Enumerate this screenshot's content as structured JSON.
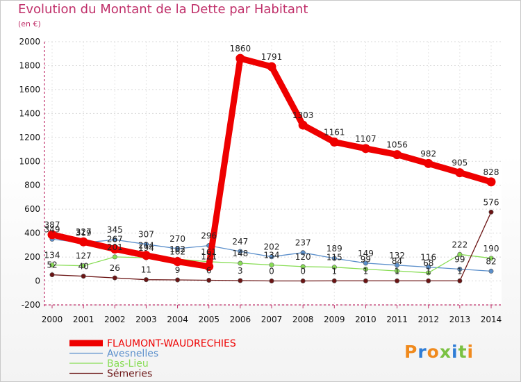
{
  "title": "Evolution du Montant de la Dette par Habitant",
  "unit": "(en €)",
  "logo": "Proxiti",
  "chart_data": {
    "type": "line",
    "title": "Evolution du Montant de la Dette par Habitant",
    "ylabel": "(en €)",
    "x": [
      "2000",
      "2001",
      "2002",
      "2003",
      "2004",
      "2005",
      "2006",
      "2007",
      "2008",
      "2009",
      "2010",
      "2011",
      "2012",
      "2013",
      "2014"
    ],
    "ylim": [
      -200,
      2000
    ],
    "yticks": [
      -200,
      0,
      200,
      400,
      600,
      800,
      1000,
      1200,
      1400,
      1600,
      1800,
      2000
    ],
    "legend_position": "bottom-left",
    "series": [
      {
        "name": "FLAUMONT-WAUDRECHIES",
        "color": "#ee0000",
        "values": [
          387,
          327,
          267,
          214,
          162,
          121,
          1860,
          1791,
          1303,
          1161,
          1107,
          1056,
          982,
          905,
          828
        ],
        "labels": [
          "387",
          "327",
          "267",
          "214",
          "162",
          "121",
          "1860",
          "1791",
          "1303",
          "1161",
          "1107",
          "1056",
          "982",
          "905",
          "828"
        ]
      },
      {
        "name": "Avesnelles",
        "color": "#5b8fcb",
        "values": [
          349,
          319,
          345,
          307,
          270,
          296,
          247,
          202,
          237,
          189,
          149,
          132,
          116,
          99,
          82
        ],
        "labels": [
          "349",
          "319",
          "345",
          "307",
          "270",
          "296",
          "247",
          "202",
          "237",
          "189",
          "149",
          "132",
          "116",
          "99",
          "82"
        ]
      },
      {
        "name": "Bas-Lieu",
        "color": "#88dd55",
        "values": [
          134,
          127,
          201,
          194,
          182,
          161,
          148,
          134,
          120,
          115,
          99,
          84,
          68,
          222,
          190
        ],
        "labels": [
          "134",
          "127",
          "201",
          "194",
          "182",
          "161",
          "148",
          "134",
          "120",
          "115",
          "99",
          "84",
          "68",
          "222",
          "190"
        ]
      },
      {
        "name": "Sémeries",
        "color": "#6b1414",
        "values": [
          52,
          40,
          26,
          11,
          9,
          6,
          3,
          0,
          0,
          1,
          1,
          1,
          1,
          1,
          576
        ],
        "labels": [
          "52",
          "40",
          "26",
          "11",
          "9",
          "6",
          "3",
          "0",
          "0",
          "1",
          "1",
          "1",
          "1",
          "1",
          "576"
        ]
      }
    ]
  }
}
